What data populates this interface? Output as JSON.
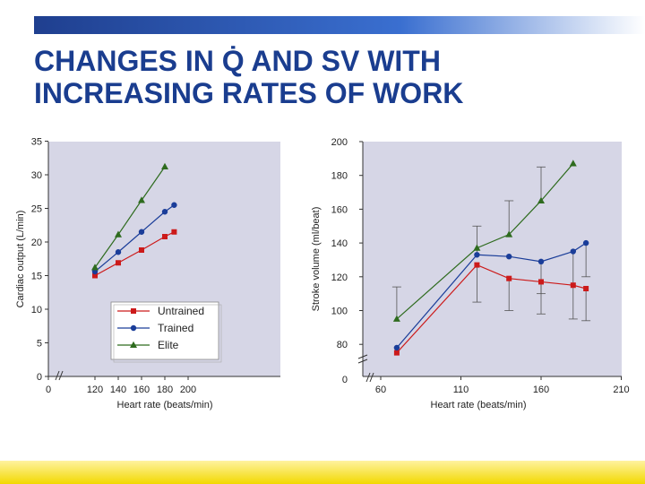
{
  "slide": {
    "title_line1": "CHANGES IN Q̇ AND SV WITH",
    "title_line2": "INCREASING RATES OF WORK"
  },
  "colors": {
    "title": "#1a3d8f",
    "plot_bg": "#d6d6e6",
    "untrained": "#cc1a1a",
    "trained": "#1a3d99",
    "elite": "#2e6b1e"
  },
  "chart_data": [
    {
      "type": "line",
      "xlabel": "Heart rate (beats/min)",
      "ylabel": "Cardiac output (L/min)",
      "xlim": [
        0,
        200
      ],
      "ylim": [
        0,
        35
      ],
      "x_axis_break": true,
      "xticks": [
        "0",
        "120",
        "140",
        "160",
        "180",
        "200"
      ],
      "yticks": [
        "0",
        "5",
        "10",
        "15",
        "20",
        "25",
        "30",
        "35"
      ],
      "legend_position": "bottom-left",
      "series": [
        {
          "name": "Untrained",
          "marker": "square",
          "x": [
            120,
            140,
            160,
            180,
            188
          ],
          "y": [
            15.0,
            16.9,
            18.8,
            20.8,
            21.5
          ]
        },
        {
          "name": "Trained",
          "marker": "circle",
          "x": [
            120,
            140,
            160,
            180,
            188
          ],
          "y": [
            15.6,
            18.5,
            21.5,
            24.5,
            25.5
          ]
        },
        {
          "name": "Elite",
          "marker": "triangle",
          "x": [
            120,
            140,
            160,
            180
          ],
          "y": [
            16.2,
            21.1,
            26.2,
            31.2
          ]
        }
      ]
    },
    {
      "type": "line",
      "xlabel": "Heart rate (beats/min)",
      "ylabel": "Stroke volume (ml/beat)",
      "xlim": [
        60,
        210
      ],
      "ylim": [
        60,
        200
      ],
      "y_axis_break": true,
      "xticks": [
        "60",
        "110",
        "160",
        "210"
      ],
      "yticks": [
        "0",
        "80",
        "100",
        "120",
        "140",
        "160",
        "180",
        "200"
      ],
      "error_bars": true,
      "series": [
        {
          "name": "Untrained",
          "marker": "square",
          "x": [
            70,
            120,
            140,
            160,
            180,
            188
          ],
          "y": [
            75,
            127,
            119,
            117,
            115,
            113
          ]
        },
        {
          "name": "Trained",
          "marker": "circle",
          "x": [
            70,
            120,
            140,
            160,
            180,
            188
          ],
          "y": [
            78,
            133,
            132,
            129,
            135,
            140
          ]
        },
        {
          "name": "Elite",
          "marker": "triangle",
          "x": [
            70,
            120,
            140,
            160,
            180
          ],
          "y": [
            95,
            137,
            145,
            165,
            187
          ]
        }
      ]
    }
  ]
}
